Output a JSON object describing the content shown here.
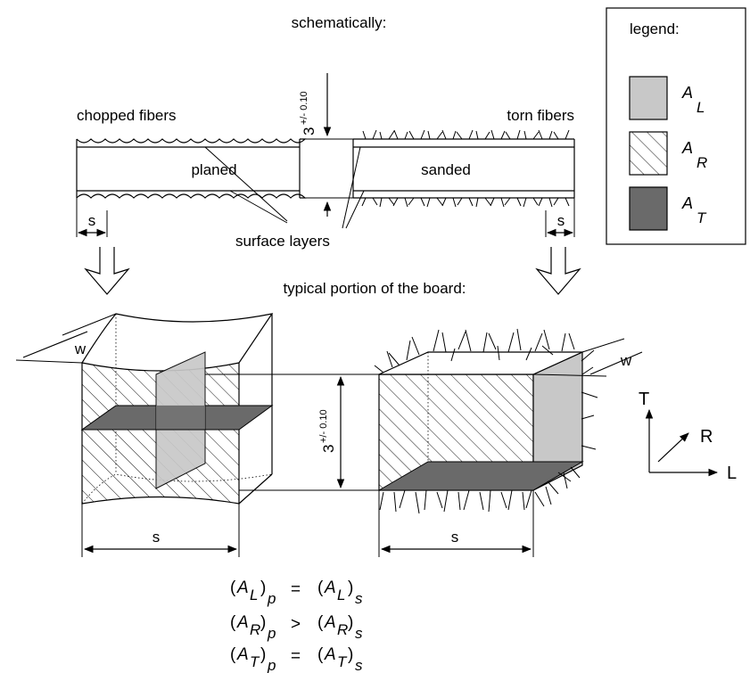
{
  "top": {
    "title": "schematically:",
    "left_label": "chopped fibers",
    "right_label": "torn fibers",
    "planed_label": "planed",
    "sanded_label": "sanded",
    "surface_layers_label": "surface layers",
    "thickness_label": "3",
    "tolerance_label": "+/- 0.10",
    "s_label": "s"
  },
  "middle": {
    "subtitle": "typical portion of the board:",
    "w_label": "w",
    "s_label": "s",
    "thickness_label": "3",
    "tolerance_label": "+/- 0.10"
  },
  "axes": {
    "t": "T",
    "r": "R",
    "l": "L"
  },
  "legend": {
    "title": "legend:",
    "items": [
      {
        "main": "A",
        "sub": "L",
        "fill": "#c8c8c8"
      },
      {
        "main": "A",
        "sub": "R",
        "fill": "hatch"
      },
      {
        "main": "A",
        "sub": "T",
        "fill": "#6a6a6a"
      }
    ]
  },
  "equations": [
    {
      "l_sub": "L",
      "l_idx": "p",
      "op": "=",
      "r_sub": "L",
      "r_idx": "s"
    },
    {
      "l_sub": "R",
      "l_idx": "p",
      "op": ">",
      "r_sub": "R",
      "r_idx": "s"
    },
    {
      "l_sub": "T",
      "l_idx": "p",
      "op": "=",
      "r_sub": "T",
      "r_idx": "s"
    }
  ],
  "colors": {
    "light_gray": "#c8c8c8",
    "dark_gray": "#6a6a6a"
  }
}
